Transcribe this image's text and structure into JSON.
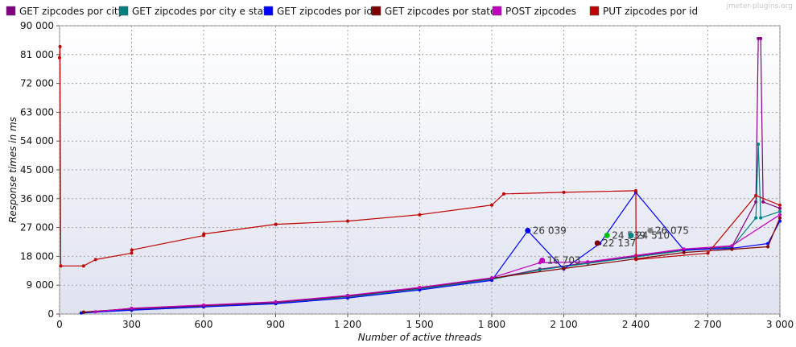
{
  "watermark": "jmeter-plugins.org",
  "chart_data": {
    "type": "line",
    "xlabel": "Number of active threads",
    "ylabel": "Response times in ms",
    "xlim": [
      0,
      3000
    ],
    "ylim": [
      0,
      90000
    ],
    "x_ticks": [
      0,
      300,
      600,
      900,
      1200,
      1500,
      1800,
      2100,
      2400,
      2700,
      3000
    ],
    "x_tick_labels": [
      "0",
      "300",
      "600",
      "900",
      "1 200",
      "1 500",
      "1 800",
      "2 100",
      "2 400",
      "2 700",
      "3 000"
    ],
    "y_ticks": [
      0,
      9000,
      18000,
      27000,
      36000,
      45000,
      54000,
      63000,
      72000,
      81000,
      90000
    ],
    "y_tick_labels": [
      "0",
      "9 000",
      "18 000",
      "27 000",
      "36 000",
      "45 000",
      "54 000",
      "63 000",
      "72 000",
      "81 000",
      "90 000"
    ],
    "grid": true,
    "legend_position": "top",
    "series": [
      {
        "name": "GET zipcodes por city",
        "color": "#800080",
        "x": [
          100,
          300,
          600,
          900,
          1200,
          1500,
          1800,
          2000,
          2200,
          2400,
          2600,
          2800,
          2900,
          2910,
          2920,
          2930,
          3000
        ],
        "y": [
          500,
          1500,
          2500,
          3500,
          5500,
          8000,
          11000,
          14000,
          16000,
          18000,
          20000,
          21000,
          35000,
          86000,
          86000,
          35000,
          33000
        ]
      },
      {
        "name": "GET zipcodes por city e state",
        "color": "#008080",
        "x": [
          100,
          300,
          600,
          900,
          1200,
          1500,
          1800,
          2000,
          2200,
          2400,
          2600,
          2800,
          2900,
          2910,
          2920,
          3000
        ],
        "y": [
          400,
          1300,
          2300,
          3300,
          5300,
          7800,
          10800,
          13800,
          15800,
          17800,
          19800,
          20800,
          30000,
          53000,
          30000,
          32000
        ]
      },
      {
        "name": "GET zipcodes por id",
        "color": "#0000ff",
        "x": [
          90,
          300,
          600,
          900,
          1200,
          1500,
          1800,
          1950,
          2100,
          2250,
          2400,
          2600,
          2800,
          2950,
          3000
        ],
        "y": [
          300,
          1200,
          2200,
          3200,
          5000,
          7500,
          10500,
          26000,
          14000,
          22000,
          38000,
          20000,
          20500,
          22000,
          29000
        ]
      },
      {
        "name": "GET zipcodes por state",
        "color": "#800000",
        "x": [
          100,
          300,
          600,
          900,
          1200,
          1500,
          1800,
          2100,
          2400,
          2600,
          2800,
          2950,
          3000
        ],
        "y": [
          600,
          1700,
          2700,
          3700,
          5700,
          8200,
          11200,
          14200,
          17200,
          19200,
          20200,
          21000,
          30000
        ]
      },
      {
        "name": "POST zipcodes",
        "color": "#c000c0",
        "x": [
          150,
          300,
          600,
          900,
          1200,
          1500,
          1800,
          2000,
          2200,
          2400,
          2600,
          2800,
          3000
        ],
        "y": [
          700,
          1800,
          2800,
          3800,
          5800,
          8300,
          11300,
          16000,
          16300,
          18300,
          20300,
          21300,
          31000
        ]
      },
      {
        "name": "PUT zipcodes por id",
        "color": "#c00000",
        "x": [
          0,
          2,
          5,
          100,
          150,
          300,
          301,
          600,
          601,
          900,
          901,
          1200,
          1500,
          1800,
          1850,
          2100,
          2400,
          2401,
          2700,
          2900,
          3000
        ],
        "y": [
          80000,
          83500,
          15000,
          15000,
          17000,
          19000,
          20000,
          24500,
          25000,
          28000,
          28000,
          29000,
          31000,
          34000,
          37500,
          38000,
          38500,
          17000,
          19000,
          37000,
          34000
        ]
      }
    ],
    "point_labels": [
      {
        "text": "26 039",
        "x": 1950,
        "y": 26039,
        "color": "#0000ff"
      },
      {
        "text": "16 703",
        "x": 2010,
        "y": 16703,
        "color": "#c000c0"
      },
      {
        "text": "22 137",
        "x": 2240,
        "y": 22137,
        "color": "#800000"
      },
      {
        "text": "24 539",
        "x": 2280,
        "y": 24539,
        "color": "#00c000"
      },
      {
        "text": "24 510",
        "x": 2380,
        "y": 24510,
        "color": "#008080"
      },
      {
        "text": "26 075",
        "x": 2460,
        "y": 26075,
        "color": "#808080"
      }
    ]
  }
}
